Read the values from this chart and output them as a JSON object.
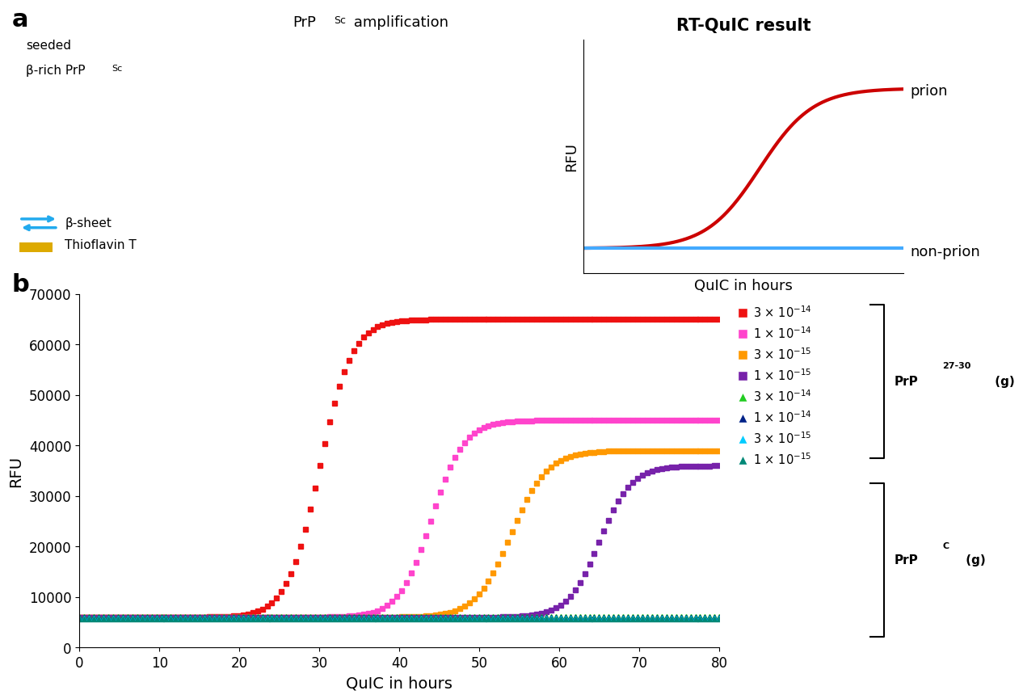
{
  "panel_a_title": "RT-QuIC result",
  "panel_a_xlabel": "QuIC in hours",
  "panel_a_ylabel": "RFU",
  "panel_b_xlabel": "QuIC in hours",
  "panel_b_ylabel": "RFU",
  "panel_b_yticks": [
    0,
    10000,
    20000,
    30000,
    40000,
    50000,
    60000,
    70000
  ],
  "panel_b_xticks": [
    0,
    10,
    20,
    30,
    40,
    50,
    60,
    70,
    80
  ],
  "panel_b_ylim": [
    0,
    70000
  ],
  "panel_b_xlim": [
    0,
    80
  ],
  "series": [
    {
      "label": "3 × 10$^{-14}$",
      "color": "#ee1111",
      "marker": "s",
      "type": "prp27"
    },
    {
      "label": "1 × 10$^{-14}$",
      "color": "#ff44cc",
      "marker": "s",
      "type": "prp27"
    },
    {
      "label": "3 × 10$^{-15}$",
      "color": "#ff9900",
      "marker": "s",
      "type": "prp27"
    },
    {
      "label": "1 × 10$^{-15}$",
      "color": "#7722aa",
      "marker": "s",
      "type": "prp27"
    },
    {
      "label": "3 × 10$^{-14}$",
      "color": "#22cc22",
      "marker": "^",
      "type": "prpc"
    },
    {
      "label": "1 × 10$^{-14}$",
      "color": "#002288",
      "marker": "^",
      "type": "prpc"
    },
    {
      "label": "3 × 10$^{-15}$",
      "color": "#00ccff",
      "marker": "^",
      "type": "prpc"
    },
    {
      "label": "1 × 10$^{-15}$",
      "color": "#008877",
      "marker": "^",
      "type": "prpc"
    }
  ],
  "prion_color": "#cc0000",
  "nonprion_color": "#44aaff",
  "label_a": "a",
  "label_b": "b",
  "prp27_label": "PrP$^{27-30}$ (g)",
  "prpc_label": "PrP$^{C}$ (g)"
}
